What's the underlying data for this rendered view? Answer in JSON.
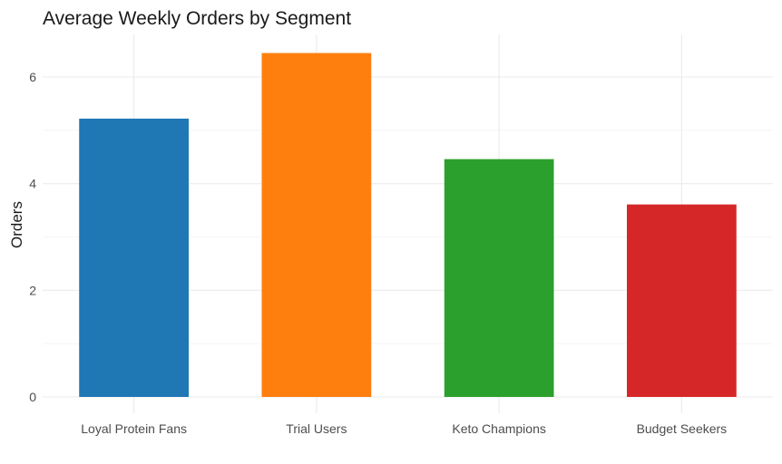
{
  "chart_data": {
    "type": "bar",
    "title": "Average Weekly Orders by Segment",
    "xlabel": "",
    "ylabel": "Orders",
    "categories": [
      "Loyal Protein Fans",
      "Trial Users",
      "Keto Champions",
      "Budget Seekers"
    ],
    "values": [
      5.22,
      6.45,
      4.46,
      3.61
    ],
    "colors": [
      "#1f77b4",
      "#ff7f0e",
      "#2ca02c",
      "#d62728"
    ],
    "yticks": [
      0,
      2,
      4,
      6
    ],
    "ylim": [
      0,
      6.77
    ],
    "grid": true,
    "legend": "none"
  }
}
